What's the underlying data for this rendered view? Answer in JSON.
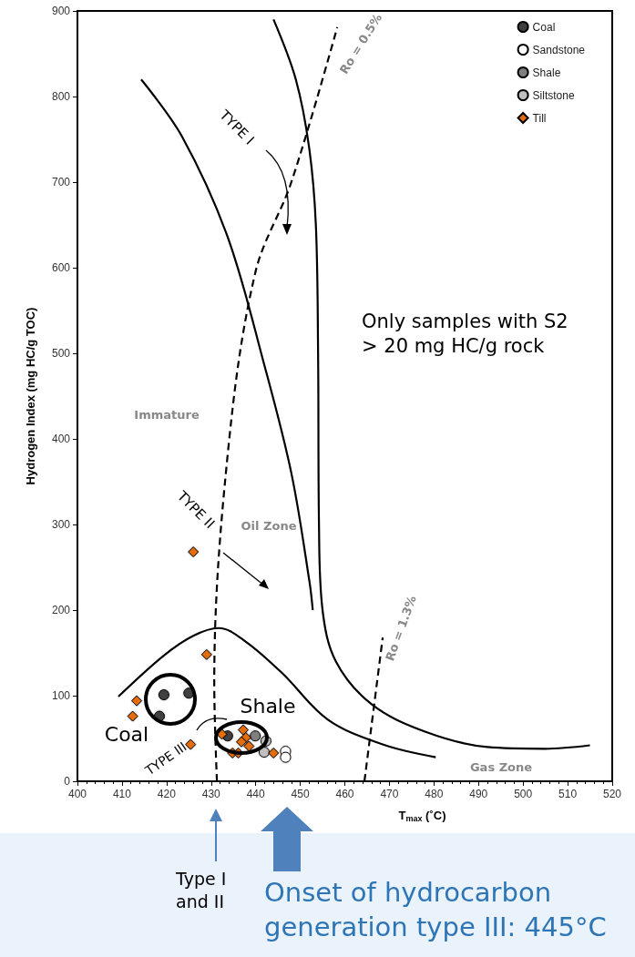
{
  "chart_data": {
    "type": "scatter",
    "xlabel": "T$_{max}$ (˚C)",
    "ylabel": "Hydrogen Index (mg HC/g TOC)",
    "xlim": [
      400,
      520
    ],
    "xticks": [
      400,
      410,
      420,
      430,
      440,
      450,
      460,
      470,
      480,
      490,
      500,
      510,
      520
    ],
    "ylim": [
      0,
      900
    ],
    "yticks": [
      0,
      100,
      200,
      300,
      400,
      500,
      600,
      700,
      800,
      900
    ],
    "grid": false,
    "legend": "top right",
    "series": [
      {
        "name": "Coal",
        "color": "#404040",
        "marker": "circle",
        "x": [
          419.4,
          425.0,
          418.4,
          433.7
        ],
        "values": [
          101,
          103,
          76,
          53
        ]
      },
      {
        "name": "Sandstone",
        "color": "#ffffff",
        "marker": "circle",
        "x": [
          446.7,
          446.7
        ],
        "values": [
          35,
          28
        ]
      },
      {
        "name": "Shale",
        "color": "#7f7f7f",
        "marker": "circle",
        "x": [
          439.9
        ],
        "values": [
          53
        ]
      },
      {
        "name": "Siltstone",
        "color": "#bfbfbf",
        "marker": "circle",
        "x": [
          441.9,
          442.3
        ],
        "values": [
          34,
          47
        ]
      },
      {
        "name": "Till",
        "color": "#e36c09",
        "marker": "diamond",
        "x": [
          426,
          429,
          413.3,
          412.4,
          425.4,
          437.2,
          437.8,
          436.8,
          434.8,
          436.1,
          444.0,
          432.4,
          438.5
        ],
        "values": [
          268,
          148,
          94,
          76,
          43,
          60,
          51,
          46,
          33,
          33,
          33,
          55,
          41
        ]
      },
      {
        "type": "line",
        "color": "#000000",
        "marker": "none",
        "line_style": "solid",
        "x": [
          444,
          449,
          452,
          453.5,
          454,
          454.2,
          455,
          458,
          466,
          478,
          492,
          505,
          515
        ],
        "values": [
          890,
          820,
          740,
          650,
          500,
          300,
          200,
          140,
          90,
          58,
          40,
          38,
          42
        ]
      },
      {
        "type": "line",
        "color": "#000000",
        "marker": "none",
        "line_style": "solid",
        "x": [
          414.3,
          423.5,
          433.7,
          441.9,
          448,
          452.1,
          452.8
        ],
        "values": [
          820,
          753,
          636,
          487,
          360,
          232,
          200
        ]
      },
      {
        "type": "line",
        "color": "#000000",
        "marker": "none",
        "line_style": "solid",
        "x": [
          409.2,
          419.4,
          426,
          431.7,
          437.8,
          446,
          456.2,
          468.5,
          480.4
        ],
        "values": [
          99,
          147,
          170,
          179,
          163,
          126,
          72,
          43,
          28
        ]
      },
      {
        "type": "line",
        "color": "#000000",
        "marker": "none",
        "line_style": "dashed",
        "x": [
          431.3,
          430.7,
          433.7,
          439.9,
          448,
          458.3
        ],
        "values": [
          0,
          115,
          381,
          594,
          700,
          881
        ]
      },
      {
        "type": "line",
        "color": "#000000",
        "marker": "none",
        "line_style": "dashed",
        "x": [
          464.4,
          468.5
        ],
        "values": [
          0,
          168
        ]
      }
    ],
    "annotations": [
      "Only samples with S2 > 20 mg HC/g rock",
      "Type I and II",
      "Onset of hydrocarbon generation type III: 445°C",
      "TYPE I",
      "TYPE II",
      "TYPE III",
      "Coal",
      "Shale",
      "Immature",
      "Oil Zone",
      "Gas Zone",
      "Ro = 0.5%",
      "Ro = 1.3%"
    ]
  }
}
